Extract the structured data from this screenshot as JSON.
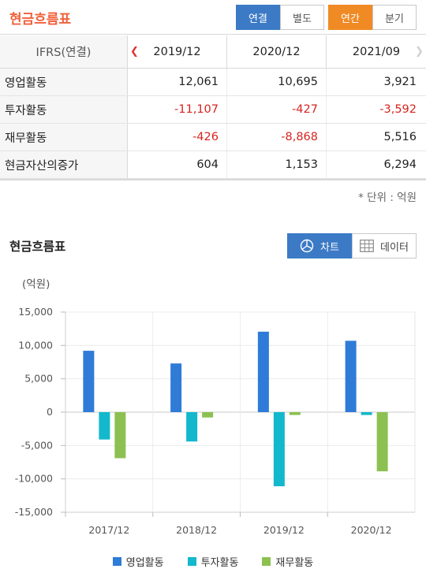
{
  "header": {
    "title": "현금흐름표",
    "consolidation_tabs": [
      {
        "label": "연결",
        "active": true
      },
      {
        "label": "별도",
        "active": false
      }
    ],
    "period_tabs": [
      {
        "label": "연간",
        "active": true
      },
      {
        "label": "분기",
        "active": false
      }
    ]
  },
  "table": {
    "header_label": "IFRS(연결)",
    "columns": [
      "2019/12",
      "2020/12",
      "2021/09"
    ],
    "rows": [
      {
        "label": "영업활동",
        "values": [
          "12,061",
          "10,695",
          "3,921"
        ]
      },
      {
        "label": "투자활동",
        "values": [
          "-11,107",
          "-427",
          "-3,592"
        ]
      },
      {
        "label": "재무활동",
        "values": [
          "-426",
          "-8,868",
          "5,516"
        ]
      },
      {
        "label": "현금자산의증가",
        "values": [
          "604",
          "1,153",
          "6,294"
        ]
      }
    ]
  },
  "unit_note": "* 단위 : 억원",
  "chart_section": {
    "title": "현금흐름표",
    "chart_button": "차트",
    "data_button": "데이터"
  },
  "colors": {
    "accent_blue": "#3c7ac6",
    "accent_orange": "#f08a24",
    "title_red": "#f0613c",
    "negative": "#d6241f"
  },
  "chart_data": {
    "type": "bar",
    "ylabel": "(억원)",
    "ylim": [
      -15000,
      15000
    ],
    "yticks": [
      15000,
      10000,
      5000,
      0,
      -5000,
      -10000,
      -15000
    ],
    "ytick_labels": [
      "15,000",
      "10,000",
      "5,000",
      "0",
      "-5,000",
      "-10,000",
      "-15,000"
    ],
    "categories": [
      "2017/12",
      "2018/12",
      "2019/12",
      "2020/12"
    ],
    "grid": true,
    "legend_position": "bottom",
    "series": [
      {
        "name": "영업활동",
        "color": "#2f7bd8",
        "values": [
          9200,
          7300,
          12061,
          10695
        ]
      },
      {
        "name": "투자활동",
        "color": "#13b8cc",
        "values": [
          -4100,
          -4400,
          -11107,
          -427
        ]
      },
      {
        "name": "재무활동",
        "color": "#8cc152",
        "values": [
          -6900,
          -800,
          -426,
          -8868
        ]
      }
    ]
  }
}
